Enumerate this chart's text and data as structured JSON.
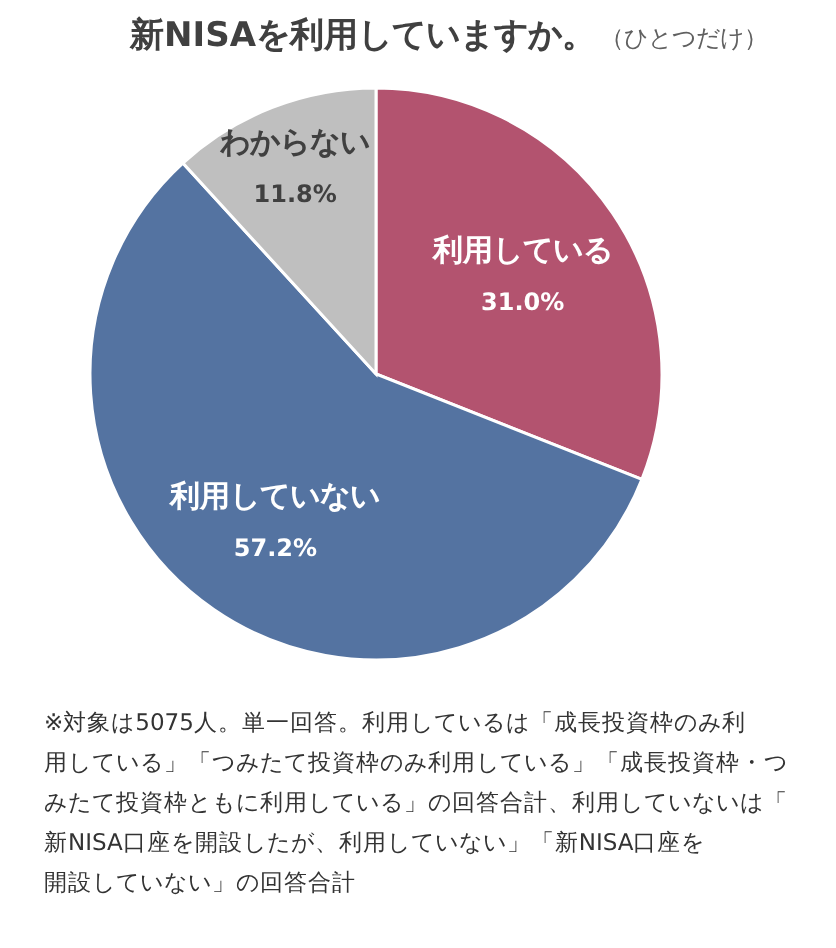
{
  "chart_data": {
    "type": "pie",
    "title": "新NISAを利用していますか。",
    "subtitle": "（ひとつだけ）",
    "categories": [
      "利用している",
      "利用していない",
      "わからない"
    ],
    "values": [
      31.0,
      57.2,
      11.8
    ],
    "colors": [
      "#b3536f",
      "#5473a1",
      "#bfbfbf"
    ],
    "value_labels": [
      "31.0%",
      "57.2%",
      "11.8%"
    ],
    "annotations": [
      "※対象は5075人。単一回答。利用しているは「成長投資枠のみ利用している」「つみたて投資枠のみ利用している」「成長投資枠・つみたて投資枠ともに利用している」の回答合計、利用していないは「新NISA口座を開設したが、利用していない」「新NISA口座を開設していない」の回答合計"
    ]
  }
}
